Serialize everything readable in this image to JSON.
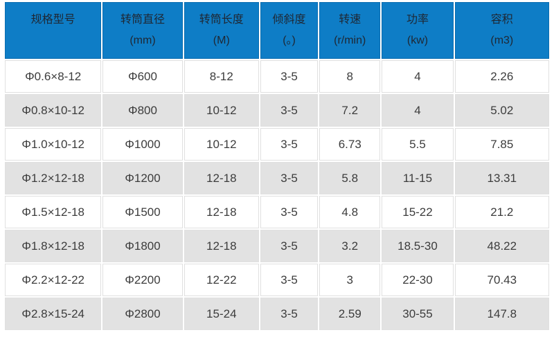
{
  "colors": {
    "header_bg": "#0e7dc6",
    "header_border": "#0a6cb0",
    "header_text": "#1f2733",
    "row_alt_bg": "#e2e2e2",
    "row_bg": "#ffffff",
    "cell_border": "#e0e0e0",
    "body_text": "#3c3c3c"
  },
  "chart_data": {
    "type": "table",
    "title": "",
    "header": [
      {
        "label": "规格型号",
        "unit": ""
      },
      {
        "label": "转筒直径",
        "unit": "(mm)"
      },
      {
        "label": "转筒长度",
        "unit": "(M)"
      },
      {
        "label": "倾斜度",
        "unit": "(。)"
      },
      {
        "label": "转速",
        "unit": "(r/min)"
      },
      {
        "label": "功率",
        "unit": "(kw)"
      },
      {
        "label": "容积",
        "unit": "(m3)"
      }
    ],
    "columns": [
      "规格型号",
      "转筒直径 (mm)",
      "转筒长度 (M)",
      "倾斜度 (。)",
      "转速 (r/min)",
      "功率 (kw)",
      "容积 (m3)"
    ],
    "rows": [
      [
        "Φ0.6×8-12",
        "Φ600",
        "8-12",
        "3-5",
        "8",
        "4",
        "2.26"
      ],
      [
        "Φ0.8×10-12",
        "Φ800",
        "10-12",
        "3-5",
        "7.2",
        "4",
        "5.02"
      ],
      [
        "Φ1.0×10-12",
        "Φ1000",
        "10-12",
        "3-5",
        "6.73",
        "5.5",
        "7.85"
      ],
      [
        "Φ1.2×12-18",
        "Φ1200",
        "12-18",
        "3-5",
        "5.8",
        "11-15",
        "13.31"
      ],
      [
        "Φ1.5×12-18",
        "Φ1500",
        "12-18",
        "3-5",
        "4.8",
        "15-22",
        "21.2"
      ],
      [
        "Φ1.8×12-18",
        "Φ1800",
        "12-18",
        "3-5",
        "3.2",
        "18.5-30",
        "48.22"
      ],
      [
        "Φ2.2×12-22",
        "Φ2200",
        "12-22",
        "3-5",
        "3",
        "22-30",
        "70.43"
      ],
      [
        "Φ2.8×15-24",
        "Φ2800",
        "15-24",
        "3-5",
        "2.59",
        "30-55",
        "147.8"
      ]
    ]
  }
}
